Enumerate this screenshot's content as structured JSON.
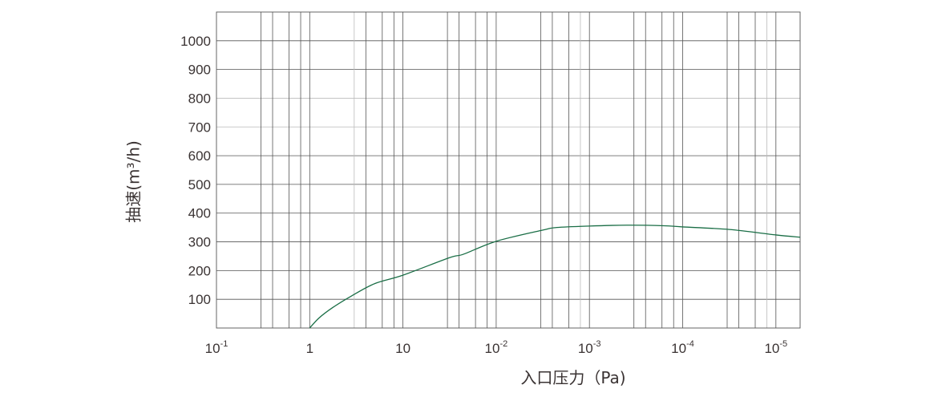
{
  "chart_data": {
    "type": "line",
    "title": "",
    "xlabel": "入口压力（Pa)",
    "ylabel": "抽速(m³/h)",
    "x_scale": "log",
    "x_ticks": [
      {
        "base": "10",
        "exp": "-1"
      },
      {
        "base": "1",
        "exp": ""
      },
      {
        "base": "10",
        "exp": ""
      },
      {
        "base": "10",
        "exp": "-2"
      },
      {
        "base": "10",
        "exp": "-3"
      },
      {
        "base": "10",
        "exp": "-4"
      },
      {
        "base": "10",
        "exp": "-5"
      }
    ],
    "y_ticks": [
      "100",
      "200",
      "300",
      "400",
      "500",
      "600",
      "700",
      "800",
      "900",
      "1000"
    ],
    "ylim": [
      0,
      1100
    ],
    "grid": true,
    "line_color": "#1a6e46",
    "series": [
      {
        "x_tick_position": [
          1.0,
          1.1,
          1.25,
          1.45,
          1.7,
          2.0,
          2.5,
          2.65,
          3.0,
          3.5,
          3.65,
          4.0,
          4.4,
          4.8,
          5.0,
          5.5,
          6.0,
          6.26
        ],
        "values": [
          0,
          35,
          72,
          112,
          155,
          184,
          245,
          257,
          302,
          341,
          350,
          355,
          358,
          356,
          352,
          343,
          324,
          316
        ]
      }
    ]
  }
}
